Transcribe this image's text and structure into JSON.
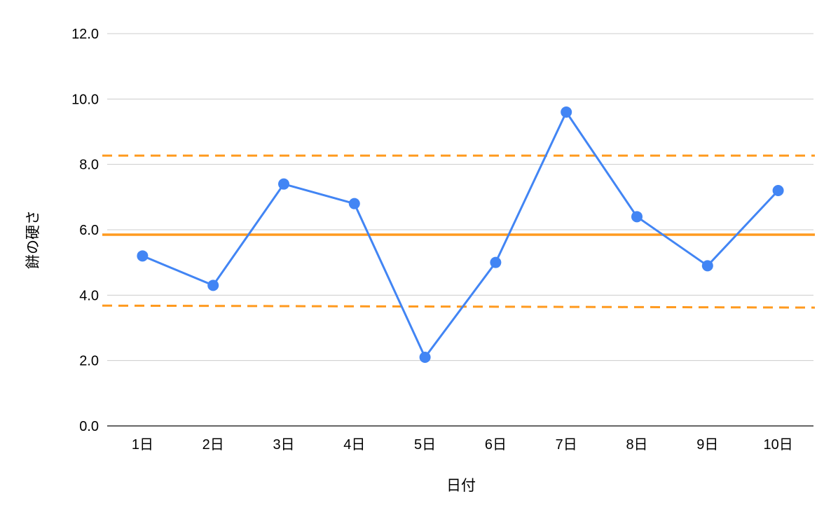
{
  "chart_data": {
    "type": "line",
    "xlabel": "日付",
    "ylabel": "餅の硬さ",
    "categories": [
      "1日",
      "2日",
      "3日",
      "4日",
      "5日",
      "6日",
      "7日",
      "8日",
      "9日",
      "10日"
    ],
    "ylim": [
      0,
      12
    ],
    "yticks": [
      "0.0",
      "2.0",
      "4.0",
      "6.0",
      "8.0",
      "10.0",
      "12.0"
    ],
    "grid": true,
    "legend": "none",
    "series": [
      {
        "values": [
          5.2,
          4.3,
          7.4,
          6.8,
          2.1,
          5.0,
          9.6,
          6.4,
          4.9,
          7.2
        ],
        "color": "#4285f4"
      }
    ],
    "reference_lines": [
      {
        "start": 5.85,
        "end": 5.85,
        "style": "solid",
        "color": "#ff9a1f"
      },
      {
        "start": 8.27,
        "end": 8.27,
        "style": "dashed",
        "color": "#ff9a1f"
      },
      {
        "start": 3.68,
        "end": 3.62,
        "style": "dashed",
        "color": "#ff9a1f"
      }
    ],
    "colors": {
      "grid": "#cccccc",
      "axis": "#333333"
    }
  }
}
